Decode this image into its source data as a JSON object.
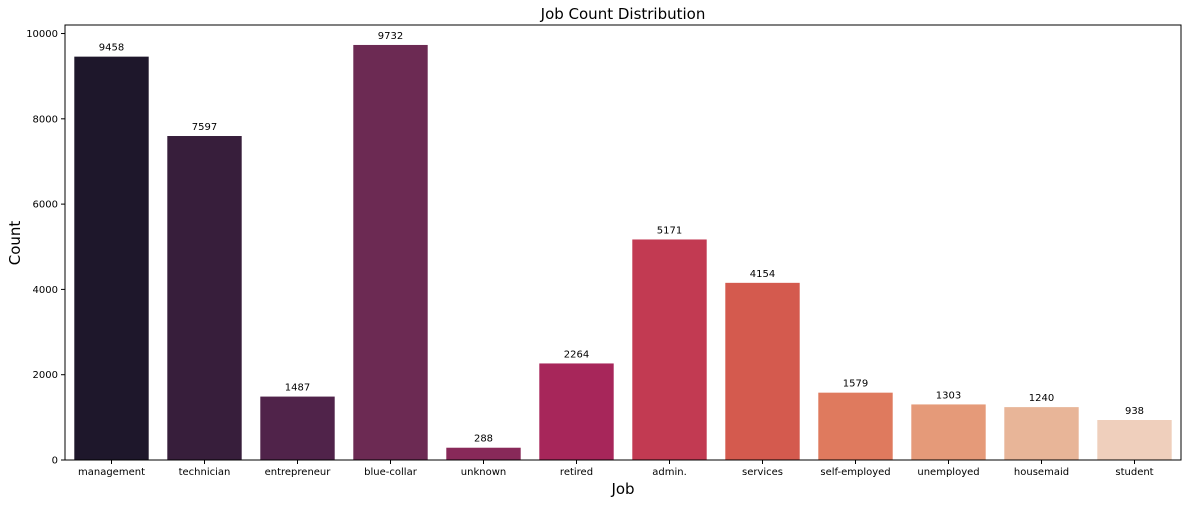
{
  "chart_data": {
    "type": "bar",
    "title": "Job Count Distribution",
    "xlabel": "Job",
    "ylabel": "Count",
    "ylim": [
      0,
      10200
    ],
    "yticks": [
      0,
      2000,
      4000,
      6000,
      8000,
      10000
    ],
    "categories": [
      "management",
      "technician",
      "entrepreneur",
      "blue-collar",
      "unknown",
      "retired",
      "admin.",
      "services",
      "self-employed",
      "unemployed",
      "housemaid",
      "student"
    ],
    "values": [
      9458,
      7597,
      1487,
      9732,
      288,
      2264,
      5171,
      4154,
      1579,
      1303,
      1240,
      938
    ],
    "colors": [
      "#1e172b",
      "#371e3b",
      "#50234a",
      "#6c2a53",
      "#882959",
      "#a7265a",
      "#c23a52",
      "#d45a4e",
      "#df7a5e",
      "#e59a79",
      "#e8b598",
      "#efcfbc"
    ],
    "grid": false,
    "legend": "none"
  }
}
